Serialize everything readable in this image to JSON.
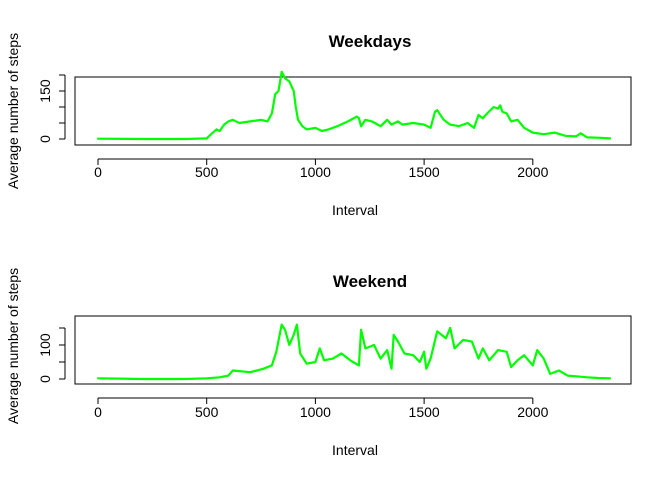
{
  "chart_data": [
    {
      "type": "line",
      "title": "Weekdays",
      "xlabel": "Interval",
      "ylabel": "Average number of steps",
      "xlim": [
        0,
        2355
      ],
      "ylim": [
        0,
        230
      ],
      "x_ticks": [
        0,
        500,
        1000,
        1500,
        2000
      ],
      "y_ticks": [
        0,
        50,
        100,
        150,
        200
      ],
      "y_tick_labels": [
        "0",
        "",
        "",
        "150",
        ""
      ],
      "color": "#00ff00",
      "grid": false,
      "series": [
        {
          "x": [
            0,
            200,
            400,
            500,
            520,
            545,
            560,
            580,
            600,
            620,
            650,
            700,
            750,
            780,
            800,
            815,
            830,
            845,
            860,
            880,
            900,
            910,
            920,
            940,
            960,
            1000,
            1030,
            1060,
            1100,
            1150,
            1190,
            1200,
            1210,
            1230,
            1260,
            1300,
            1330,
            1350,
            1380,
            1400,
            1450,
            1500,
            1530,
            1550,
            1560,
            1590,
            1620,
            1660,
            1700,
            1730,
            1750,
            1770,
            1790,
            1820,
            1840,
            1850,
            1860,
            1880,
            1900,
            1930,
            1960,
            2000,
            2050,
            2100,
            2150,
            2200,
            2220,
            2250,
            2300,
            2355
          ],
          "y": [
            1,
            0,
            0,
            2,
            15,
            30,
            25,
            45,
            55,
            60,
            50,
            55,
            60,
            55,
            80,
            140,
            150,
            210,
            190,
            180,
            150,
            100,
            60,
            40,
            30,
            35,
            25,
            30,
            40,
            55,
            70,
            65,
            40,
            60,
            55,
            40,
            60,
            45,
            55,
            45,
            50,
            45,
            35,
            85,
            90,
            60,
            45,
            40,
            50,
            35,
            75,
            65,
            80,
            100,
            95,
            105,
            85,
            80,
            55,
            60,
            35,
            20,
            15,
            20,
            10,
            8,
            18,
            5,
            4,
            2
          ]
        }
      ]
    },
    {
      "type": "line",
      "title": "Weekend",
      "xlabel": "Interval",
      "ylabel": "Average number of steps",
      "xlim": [
        0,
        2355
      ],
      "ylim": [
        0,
        170
      ],
      "x_ticks": [
        0,
        500,
        1000,
        1500,
        2000
      ],
      "y_ticks": [
        0,
        50,
        100,
        150
      ],
      "y_tick_labels": [
        "0",
        "",
        "100",
        ""
      ],
      "color": "#00ff00",
      "grid": false,
      "series": [
        {
          "x": [
            0,
            200,
            400,
            500,
            560,
            600,
            620,
            700,
            760,
            800,
            820,
            845,
            860,
            880,
            900,
            915,
            930,
            960,
            1000,
            1020,
            1040,
            1080,
            1120,
            1160,
            1200,
            1210,
            1230,
            1270,
            1300,
            1330,
            1350,
            1360,
            1380,
            1410,
            1450,
            1480,
            1500,
            1510,
            1530,
            1560,
            1600,
            1620,
            1640,
            1680,
            1720,
            1750,
            1770,
            1800,
            1840,
            1880,
            1900,
            1930,
            1960,
            2000,
            2020,
            2050,
            2080,
            2120,
            2160,
            2200,
            2250,
            2300,
            2355
          ],
          "y": [
            2,
            0,
            0,
            2,
            5,
            10,
            25,
            20,
            30,
            40,
            80,
            160,
            145,
            100,
            130,
            160,
            75,
            45,
            50,
            90,
            55,
            60,
            75,
            55,
            40,
            145,
            90,
            100,
            60,
            85,
            30,
            130,
            110,
            75,
            70,
            50,
            80,
            30,
            60,
            140,
            120,
            150,
            90,
            115,
            110,
            60,
            90,
            55,
            85,
            80,
            35,
            55,
            70,
            40,
            85,
            60,
            15,
            25,
            10,
            8,
            5,
            3,
            2
          ]
        }
      ]
    }
  ]
}
